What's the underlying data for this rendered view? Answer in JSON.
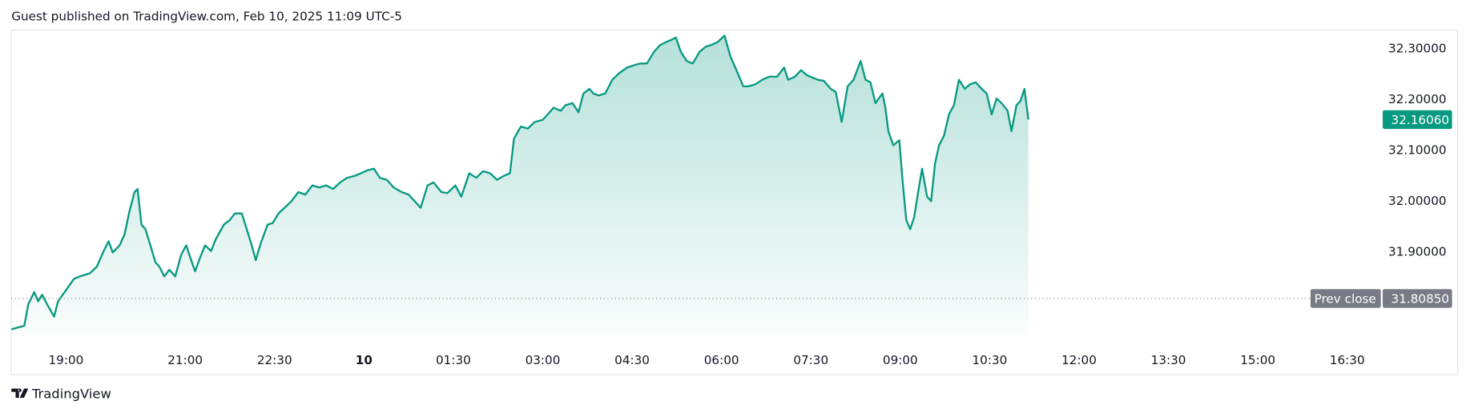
{
  "header": {
    "text": "Guest published on TradingView.com, Feb 10, 2025 11:09 UTC-5"
  },
  "footer": {
    "brand": "TradingView"
  },
  "chart_data": {
    "type": "area",
    "color": "#089981",
    "x": [
      "18:05",
      "18:11",
      "18:18",
      "18:22",
      "18:28",
      "18:32",
      "18:36",
      "18:41",
      "18:48",
      "18:52",
      "19:00",
      "19:08",
      "19:14",
      "19:24",
      "19:31",
      "19:38",
      "19:43",
      "19:47",
      "19:54",
      "19:59",
      "20:04",
      "20:09",
      "20:12",
      "20:16",
      "20:20",
      "20:25",
      "20:30",
      "20:34",
      "20:39",
      "20:44",
      "20:50",
      "20:56",
      "21:01",
      "21:06",
      "21:10",
      "21:15",
      "21:20",
      "21:26",
      "21:31",
      "21:39",
      "21:45",
      "21:50",
      "21:57",
      "22:02",
      "22:07",
      "22:11",
      "22:16",
      "22:23",
      "22:28",
      "22:34",
      "22:40",
      "22:47",
      "22:54",
      "23:01",
      "23:08",
      "23:15",
      "23:22",
      "23:29",
      "23:36",
      "23:43",
      "23:51",
      "23:57",
      "00:04",
      "00:10",
      "00:16",
      "00:23",
      "00:30",
      "00:38",
      "00:45",
      "00:51",
      "00:57",
      "01:04",
      "01:10",
      "01:18",
      "01:24",
      "01:32",
      "01:38",
      "01:46",
      "01:53",
      "02:00",
      "02:07",
      "02:14",
      "02:21",
      "02:27",
      "02:31",
      "02:38",
      "02:45",
      "02:52",
      "03:00",
      "03:05",
      "03:11",
      "03:18",
      "03:23",
      "03:30",
      "03:36",
      "03:41",
      "03:47",
      "03:51",
      "03:56",
      "04:03",
      "04:10",
      "04:17",
      "04:25",
      "04:31",
      "04:38",
      "04:45",
      "04:52",
      "04:58",
      "05:04",
      "05:10",
      "05:14",
      "05:19",
      "05:25",
      "05:31",
      "05:38",
      "05:44",
      "05:49",
      "05:56",
      "06:03",
      "06:09",
      "06:15",
      "06:22",
      "06:27",
      "06:34",
      "06:41",
      "06:48",
      "06:56",
      "07:03",
      "07:07",
      "07:14",
      "07:20",
      "07:26",
      "07:32",
      "07:37",
      "07:43",
      "07:50",
      "07:55",
      "08:01",
      "08:07",
      "08:13",
      "08:20",
      "08:25",
      "08:30",
      "08:35",
      "08:42",
      "08:45",
      "08:48",
      "08:53",
      "08:59",
      "09:02",
      "09:06",
      "09:10",
      "09:14",
      "09:18",
      "09:22",
      "09:27",
      "09:31",
      "09:35",
      "09:39",
      "09:44",
      "09:49",
      "09:54",
      "09:59",
      "10:05",
      "10:10",
      "10:16",
      "10:22",
      "10:27",
      "10:32",
      "10:37",
      "10:42",
      "10:48",
      "10:52",
      "10:57",
      "11:01",
      "11:05",
      "11:09"
    ],
    "values": [
      31.748,
      31.751,
      31.755,
      31.797,
      31.821,
      31.803,
      31.816,
      31.797,
      31.773,
      31.803,
      31.825,
      31.847,
      31.852,
      31.858,
      31.871,
      31.902,
      31.921,
      31.899,
      31.913,
      31.935,
      31.981,
      32.018,
      32.024,
      31.954,
      31.945,
      31.913,
      31.88,
      31.871,
      31.852,
      31.865,
      31.852,
      31.895,
      31.913,
      31.884,
      31.862,
      31.889,
      31.913,
      31.902,
      31.926,
      31.954,
      31.963,
      31.976,
      31.976,
      31.945,
      31.913,
      31.884,
      31.917,
      31.954,
      31.957,
      31.976,
      31.987,
      32.0,
      32.018,
      32.013,
      32.031,
      32.027,
      32.031,
      32.024,
      32.037,
      32.046,
      32.05,
      32.055,
      32.061,
      32.064,
      32.046,
      32.042,
      32.027,
      32.018,
      32.013,
      32.0,
      31.987,
      32.031,
      32.037,
      32.018,
      32.016,
      32.031,
      32.009,
      32.055,
      32.046,
      32.059,
      32.055,
      32.042,
      32.05,
      32.055,
      32.123,
      32.147,
      32.143,
      32.156,
      32.16,
      32.171,
      32.184,
      32.178,
      32.189,
      32.193,
      32.175,
      32.212,
      32.221,
      32.212,
      32.208,
      32.212,
      32.239,
      32.252,
      32.263,
      32.267,
      32.271,
      32.271,
      32.294,
      32.307,
      32.313,
      32.318,
      32.322,
      32.294,
      32.276,
      32.271,
      32.294,
      32.304,
      32.307,
      32.313,
      32.326,
      32.285,
      32.258,
      32.226,
      32.226,
      32.23,
      32.239,
      32.245,
      32.245,
      32.263,
      32.239,
      32.245,
      32.258,
      32.248,
      32.243,
      32.239,
      32.237,
      32.221,
      32.215,
      32.156,
      32.226,
      32.239,
      32.276,
      32.239,
      32.234,
      32.193,
      32.212,
      32.184,
      32.138,
      32.11,
      32.12,
      32.046,
      31.963,
      31.945,
      31.969,
      32.018,
      32.064,
      32.009,
      32.0,
      32.074,
      32.11,
      32.129,
      32.171,
      32.189,
      32.239,
      32.221,
      32.23,
      32.234,
      32.221,
      32.212,
      32.171,
      32.202,
      32.193,
      32.178,
      32.138,
      32.189,
      32.197,
      32.221,
      32.1606
    ],
    "last_value_label": "32.16060",
    "prev_close": {
      "label": "Prev close",
      "value": 31.8085,
      "value_label": "31.80850"
    },
    "xlim": [
      "18:05",
      "17:01"
    ],
    "xticks": [
      "19:00",
      "21:00",
      "22:30",
      {
        "value": "00:00",
        "label": "10"
      },
      "01:30",
      "03:00",
      "04:30",
      "06:00",
      "07:30",
      "09:00",
      "10:30",
      "12:00",
      "13:30",
      "15:00",
      "16:30"
    ],
    "ylim": [
      31.714,
      32.337
    ],
    "yticks": [
      {
        "value": 31.9,
        "label": "31.90000"
      },
      {
        "value": 32.0,
        "label": "32.00000"
      },
      {
        "value": 32.1,
        "label": "32.10000"
      },
      {
        "value": 32.2,
        "label": "32.20000"
      },
      {
        "value": 32.3,
        "label": "32.30000"
      }
    ]
  }
}
